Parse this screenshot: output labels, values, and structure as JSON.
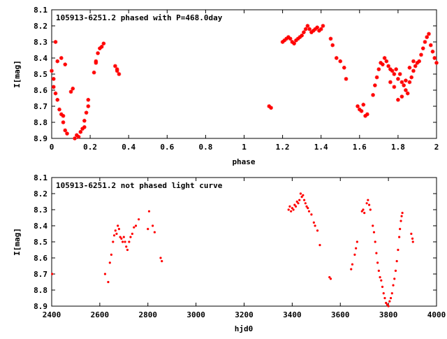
{
  "chart_data": [
    {
      "type": "scatter",
      "title": "105913-6251.2 phased with P=468.0day",
      "xlabel": "phase",
      "ylabel": "I[mag]",
      "xlim": [
        0,
        2
      ],
      "ylim": [
        8.9,
        8.1
      ],
      "y_inverted": true,
      "x_ticks": [
        "0",
        "0.2",
        "0.4",
        "0.6",
        "0.8",
        "1",
        "1.2",
        "1.4",
        "1.6",
        "1.8",
        "2"
      ],
      "y_ticks": [
        "8.1",
        "8.2",
        "8.3",
        "8.4",
        "8.5",
        "8.6",
        "8.7",
        "8.8",
        "8.9"
      ],
      "marker_color": "#ff0000",
      "marker": "star",
      "points": [
        [
          0.0,
          8.48
        ],
        [
          0.01,
          8.53
        ],
        [
          0.01,
          8.58
        ],
        [
          0.02,
          8.62
        ],
        [
          0.02,
          8.3
        ],
        [
          0.03,
          8.66
        ],
        [
          0.03,
          8.42
        ],
        [
          0.04,
          8.72
        ],
        [
          0.05,
          8.75
        ],
        [
          0.05,
          8.4
        ],
        [
          0.06,
          8.76
        ],
        [
          0.06,
          8.8
        ],
        [
          0.07,
          8.44
        ],
        [
          0.07,
          8.85
        ],
        [
          0.08,
          8.87
        ],
        [
          0.1,
          8.61
        ],
        [
          0.11,
          8.59
        ],
        [
          0.12,
          8.9
        ],
        [
          0.13,
          8.88
        ],
        [
          0.14,
          8.89
        ],
        [
          0.15,
          8.86
        ],
        [
          0.16,
          8.84
        ],
        [
          0.17,
          8.83
        ],
        [
          0.17,
          8.79
        ],
        [
          0.18,
          8.74
        ],
        [
          0.19,
          8.7
        ],
        [
          0.19,
          8.66
        ],
        [
          0.22,
          8.49
        ],
        [
          0.23,
          8.42
        ],
        [
          0.23,
          8.43
        ],
        [
          0.24,
          8.37
        ],
        [
          0.25,
          8.34
        ],
        [
          0.26,
          8.33
        ],
        [
          0.27,
          8.31
        ],
        [
          0.33,
          8.45
        ],
        [
          0.34,
          8.47
        ],
        [
          0.34,
          8.48
        ],
        [
          0.35,
          8.5
        ],
        [
          1.13,
          8.7
        ],
        [
          1.14,
          8.71
        ],
        [
          1.2,
          8.3
        ],
        [
          1.21,
          8.29
        ],
        [
          1.22,
          8.28
        ],
        [
          1.23,
          8.27
        ],
        [
          1.24,
          8.28
        ],
        [
          1.25,
          8.3
        ],
        [
          1.26,
          8.31
        ],
        [
          1.27,
          8.29
        ],
        [
          1.28,
          8.28
        ],
        [
          1.29,
          8.27
        ],
        [
          1.3,
          8.26
        ],
        [
          1.31,
          8.24
        ],
        [
          1.32,
          8.22
        ],
        [
          1.33,
          8.2
        ],
        [
          1.34,
          8.22
        ],
        [
          1.35,
          8.24
        ],
        [
          1.36,
          8.23
        ],
        [
          1.37,
          8.22
        ],
        [
          1.38,
          8.21
        ],
        [
          1.39,
          8.23
        ],
        [
          1.4,
          8.22
        ],
        [
          1.41,
          8.2
        ],
        [
          1.45,
          8.28
        ],
        [
          1.46,
          8.32
        ],
        [
          1.48,
          8.4
        ],
        [
          1.5,
          8.42
        ],
        [
          1.52,
          8.46
        ],
        [
          1.53,
          8.53
        ],
        [
          1.59,
          8.7
        ],
        [
          1.6,
          8.72
        ],
        [
          1.61,
          8.73
        ],
        [
          1.62,
          8.69
        ],
        [
          1.63,
          8.76
        ],
        [
          1.64,
          8.75
        ],
        [
          1.67,
          8.63
        ],
        [
          1.68,
          8.57
        ],
        [
          1.69,
          8.52
        ],
        [
          1.7,
          8.47
        ],
        [
          1.71,
          8.43
        ],
        [
          1.72,
          8.44
        ],
        [
          1.73,
          8.4
        ],
        [
          1.74,
          8.42
        ],
        [
          1.75,
          8.45
        ],
        [
          1.76,
          8.47
        ],
        [
          1.77,
          8.48
        ],
        [
          1.78,
          8.5
        ],
        [
          1.79,
          8.47
        ],
        [
          1.8,
          8.53
        ],
        [
          1.81,
          8.5
        ],
        [
          1.82,
          8.55
        ],
        [
          1.83,
          8.57
        ],
        [
          1.84,
          8.54
        ],
        [
          1.85,
          8.62
        ],
        [
          1.86,
          8.55
        ],
        [
          1.87,
          8.52
        ],
        [
          1.88,
          8.48
        ],
        [
          1.89,
          8.45
        ],
        [
          1.9,
          8.43
        ],
        [
          1.91,
          8.42
        ],
        [
          1.92,
          8.38
        ],
        [
          1.93,
          8.34
        ],
        [
          1.94,
          8.3
        ],
        [
          1.95,
          8.27
        ],
        [
          1.96,
          8.25
        ],
        [
          1.97,
          8.32
        ],
        [
          1.98,
          8.36
        ],
        [
          1.99,
          8.4
        ],
        [
          2.0,
          8.43
        ],
        [
          1.8,
          8.66
        ],
        [
          1.82,
          8.64
        ],
        [
          1.84,
          8.6
        ],
        [
          1.78,
          8.58
        ],
        [
          1.76,
          8.55
        ],
        [
          1.86,
          8.46
        ],
        [
          1.88,
          8.42
        ]
      ]
    },
    {
      "type": "scatter",
      "title": "105913-6251.2 not phased light curve",
      "xlabel": "hjd0",
      "ylabel": "I[mag]",
      "xlim": [
        2400,
        4000
      ],
      "ylim": [
        8.9,
        8.1
      ],
      "y_inverted": true,
      "x_ticks": [
        "2400",
        "2600",
        "2800",
        "3000",
        "3200",
        "3400",
        "3600",
        "3800",
        "4000"
      ],
      "y_ticks": [
        "8.1",
        "8.2",
        "8.3",
        "8.4",
        "8.5",
        "8.6",
        "8.7",
        "8.8",
        "8.9"
      ],
      "marker_color": "#ff0000",
      "marker": "dot",
      "points": [
        [
          2402,
          8.7
        ],
        [
          2622,
          8.7
        ],
        [
          2635,
          8.75
        ],
        [
          2642,
          8.63
        ],
        [
          2648,
          8.58
        ],
        [
          2655,
          8.5
        ],
        [
          2660,
          8.46
        ],
        [
          2665,
          8.43
        ],
        [
          2670,
          8.45
        ],
        [
          2675,
          8.4
        ],
        [
          2680,
          8.42
        ],
        [
          2685,
          8.47
        ],
        [
          2690,
          8.48
        ],
        [
          2695,
          8.5
        ],
        [
          2700,
          8.47
        ],
        [
          2705,
          8.5
        ],
        [
          2710,
          8.53
        ],
        [
          2715,
          8.55
        ],
        [
          2722,
          8.5
        ],
        [
          2728,
          8.47
        ],
        [
          2735,
          8.45
        ],
        [
          2742,
          8.41
        ],
        [
          2750,
          8.4
        ],
        [
          2762,
          8.36
        ],
        [
          2800,
          8.42
        ],
        [
          2805,
          8.31
        ],
        [
          2820,
          8.4
        ],
        [
          2828,
          8.44
        ],
        [
          2853,
          8.6
        ],
        [
          2858,
          8.62
        ],
        [
          3385,
          8.3
        ],
        [
          3390,
          8.28
        ],
        [
          3395,
          8.31
        ],
        [
          3400,
          8.29
        ],
        [
          3405,
          8.3
        ],
        [
          3410,
          8.27
        ],
        [
          3415,
          8.28
        ],
        [
          3420,
          8.25
        ],
        [
          3425,
          8.26
        ],
        [
          3430,
          8.24
        ],
        [
          3435,
          8.2
        ],
        [
          3440,
          8.22
        ],
        [
          3445,
          8.21
        ],
        [
          3450,
          8.24
        ],
        [
          3455,
          8.26
        ],
        [
          3460,
          8.28
        ],
        [
          3465,
          8.29
        ],
        [
          3470,
          8.31
        ],
        [
          3480,
          8.33
        ],
        [
          3490,
          8.38
        ],
        [
          3495,
          8.4
        ],
        [
          3505,
          8.43
        ],
        [
          3515,
          8.52
        ],
        [
          3555,
          8.72
        ],
        [
          3560,
          8.73
        ],
        [
          3645,
          8.67
        ],
        [
          3650,
          8.64
        ],
        [
          3660,
          8.58
        ],
        [
          3665,
          8.54
        ],
        [
          3670,
          8.5
        ],
        [
          3690,
          8.31
        ],
        [
          3695,
          8.3
        ],
        [
          3700,
          8.32
        ],
        [
          3710,
          8.26
        ],
        [
          3715,
          8.24
        ],
        [
          3720,
          8.27
        ],
        [
          3725,
          8.3
        ],
        [
          3735,
          8.4
        ],
        [
          3740,
          8.44
        ],
        [
          3745,
          8.5
        ],
        [
          3750,
          8.57
        ],
        [
          3755,
          8.63
        ],
        [
          3760,
          8.68
        ],
        [
          3765,
          8.72
        ],
        [
          3770,
          8.74
        ],
        [
          3775,
          8.78
        ],
        [
          3780,
          8.82
        ],
        [
          3785,
          8.85
        ],
        [
          3790,
          8.88
        ],
        [
          3795,
          8.89
        ],
        [
          3800,
          8.9
        ],
        [
          3805,
          8.87
        ],
        [
          3810,
          8.85
        ],
        [
          3815,
          8.82
        ],
        [
          3820,
          8.77
        ],
        [
          3825,
          8.73
        ],
        [
          3830,
          8.68
        ],
        [
          3835,
          8.62
        ],
        [
          3840,
          8.55
        ],
        [
          3845,
          8.47
        ],
        [
          3848,
          8.42
        ],
        [
          3852,
          8.37
        ],
        [
          3855,
          8.34
        ],
        [
          3858,
          8.32
        ],
        [
          3895,
          8.45
        ],
        [
          3900,
          8.48
        ],
        [
          3902,
          8.5
        ]
      ]
    }
  ]
}
